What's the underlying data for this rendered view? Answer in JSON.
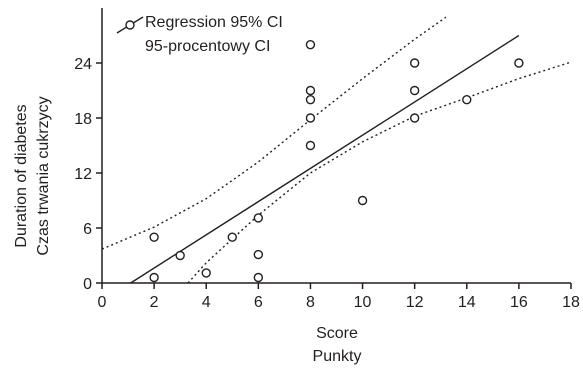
{
  "chart_data": {
    "type": "scatter",
    "xlabel": [
      "Score",
      "Punkty"
    ],
    "ylabel": [
      "Duration of diabetes",
      "Czas trwania cukrzycy"
    ],
    "xlim": [
      0,
      18
    ],
    "ylim": [
      0,
      30
    ],
    "x_ticks": [
      "0",
      "2",
      "4",
      "6",
      "8",
      "10",
      "12",
      "14",
      "16",
      "18"
    ],
    "y_ticks": [
      "0",
      "6",
      "12",
      "18",
      "24"
    ],
    "legend": {
      "position": "top-left",
      "lines": [
        "Regression 95% CI",
        "95-procentowy CI"
      ]
    },
    "points": [
      {
        "x": 2,
        "y": 0.6
      },
      {
        "x": 2,
        "y": 5
      },
      {
        "x": 3,
        "y": 3
      },
      {
        "x": 4,
        "y": 1.1
      },
      {
        "x": 5,
        "y": 5
      },
      {
        "x": 6,
        "y": 0.6
      },
      {
        "x": 6,
        "y": 3.1
      },
      {
        "x": 6,
        "y": 7.1
      },
      {
        "x": 8,
        "y": 15
      },
      {
        "x": 8,
        "y": 18
      },
      {
        "x": 8,
        "y": 20
      },
      {
        "x": 8,
        "y": 21
      },
      {
        "x": 8,
        "y": 26
      },
      {
        "x": 10,
        "y": 9
      },
      {
        "x": 12,
        "y": 18
      },
      {
        "x": 12,
        "y": 21
      },
      {
        "x": 12,
        "y": 24
      },
      {
        "x": 14,
        "y": 20
      },
      {
        "x": 16,
        "y": 24
      }
    ],
    "regression_line": {
      "x": [
        1.1,
        16
      ],
      "y": [
        0,
        27
      ]
    },
    "ci_upper": {
      "x": [
        0,
        2,
        4,
        6,
        8,
        10,
        12,
        13.2
      ],
      "y": [
        3.7,
        6.1,
        9.2,
        13.2,
        17.8,
        22.3,
        26.6,
        29
      ]
    },
    "ci_lower": {
      "x": [
        3.3,
        4,
        6,
        8,
        10,
        12,
        14,
        16,
        18
      ],
      "y": [
        0,
        2.2,
        7.4,
        12,
        15.4,
        18.2,
        20.2,
        22.3,
        24.1
      ]
    },
    "grid": false
  }
}
